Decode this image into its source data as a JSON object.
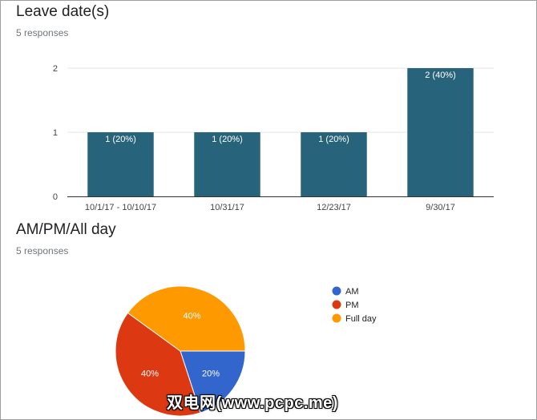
{
  "chart_data": [
    {
      "type": "bar",
      "title": "Leave date(s)",
      "subtitle": "5 responses",
      "categories": [
        "10/1/17 - 10/10/17",
        "10/31/17",
        "12/23/17",
        "9/30/17"
      ],
      "values": [
        1,
        1,
        1,
        2
      ],
      "data_labels": [
        "1 (20%)",
        "1 (20%)",
        "1 (20%)",
        "2 (40%)"
      ],
      "y_ticks": [
        "0",
        "1",
        "2"
      ],
      "ylim": [
        0,
        2
      ],
      "grid": true,
      "color": "#27647b"
    },
    {
      "type": "pie",
      "title": "AM/PM/All day",
      "subtitle": "5 responses",
      "slices": [
        {
          "label": "AM",
          "value": 20,
          "pct_label": "20%",
          "color": "#3366cc"
        },
        {
          "label": "PM",
          "value": 40,
          "pct_label": "40%",
          "color": "#dc3912"
        },
        {
          "label": "Full day",
          "value": 40,
          "pct_label": "40%",
          "color": "#ff9900"
        }
      ],
      "legend": "right"
    }
  ],
  "watermark": "双电网(www.pcpc.me)"
}
